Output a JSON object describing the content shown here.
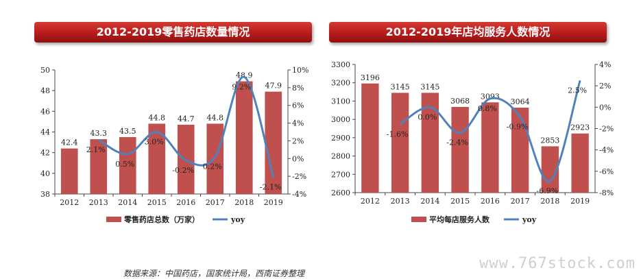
{
  "chart_data": [
    {
      "type": "bar",
      "title": "2012-2019零售药店数量情况",
      "categories": [
        "2012",
        "2013",
        "2014",
        "2015",
        "2016",
        "2017",
        "2018",
        "2019"
      ],
      "series": [
        {
          "name": "零售药店总数（万家）",
          "type": "bar",
          "axis": "left",
          "values": [
            42.4,
            43.3,
            43.5,
            44.8,
            44.7,
            44.8,
            48.9,
            47.9
          ],
          "labels": [
            "42.4",
            "43.3",
            "43.5",
            "44.8",
            "44.7",
            "44.8",
            "48.9",
            "47.9"
          ]
        },
        {
          "name": "yoy",
          "type": "line",
          "axis": "right",
          "values": [
            null,
            2.1,
            0.5,
            3.0,
            -0.2,
            0.2,
            9.2,
            -2.1
          ],
          "labels": [
            "",
            "2.1%",
            "0.5%",
            "3.0%",
            "-0.2%",
            "0.2%",
            "9.2%",
            "-2.1%"
          ]
        }
      ],
      "ylim": [
        38,
        50
      ],
      "yticks": [
        "38",
        "40",
        "42",
        "44",
        "46",
        "48",
        "50"
      ],
      "y2lim": [
        -4,
        10
      ],
      "y2ticks": [
        "-4%",
        "-2%",
        "0%",
        "2%",
        "4%",
        "6%",
        "8%",
        "10%"
      ],
      "legend": "bottom",
      "grid": false,
      "colors": {
        "bar": "#c0504d",
        "line": "#4f81bd"
      }
    },
    {
      "type": "bar",
      "title": "2012-2019年店均服务人数情况",
      "categories": [
        "2012",
        "2013",
        "2014",
        "2015",
        "2016",
        "2017",
        "2018",
        "2019"
      ],
      "series": [
        {
          "name": "平均每店服务人数",
          "type": "bar",
          "axis": "left",
          "values": [
            3196,
            3145,
            3145,
            3068,
            3093,
            3064,
            2853,
            2923
          ],
          "labels": [
            "3196",
            "3145",
            "3145",
            "3068",
            "3093",
            "3064",
            "2853",
            "2923"
          ]
        },
        {
          "name": "yoy",
          "type": "line",
          "axis": "right",
          "values": [
            null,
            -1.6,
            0.0,
            -2.4,
            0.8,
            -0.9,
            -6.9,
            2.5
          ],
          "labels": [
            "",
            "-1.6%",
            "0.0%",
            "-2.4%",
            "0.8%",
            "-0.9%",
            "-6.9%",
            "2.5%"
          ]
        }
      ],
      "ylim": [
        2600,
        3300
      ],
      "yticks": [
        "2600",
        "2700",
        "2800",
        "2900",
        "3000",
        "3100",
        "3200",
        "3300"
      ],
      "y2lim": [
        -8,
        4
      ],
      "y2ticks": [
        "-8%",
        "-6%",
        "-4%",
        "-2%",
        "0%",
        "2%",
        "4%"
      ],
      "legend": "bottom",
      "grid": false,
      "colors": {
        "bar": "#c0504d",
        "line": "#4f81bd"
      }
    }
  ],
  "source_note": "数据来源：中国药店，国家统计局，西南证券整理",
  "watermark": "www.767stock.com"
}
